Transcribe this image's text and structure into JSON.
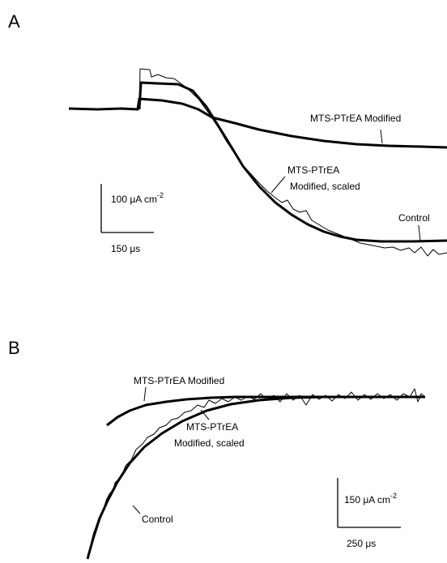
{
  "panels": [
    {
      "label": "A",
      "traces": {
        "modified": "MTS-PTrEA Modified",
        "scaled": [
          "MTS-PTrEA",
          "Modified, scaled"
        ],
        "control": "Control"
      },
      "scale_bar": {
        "current": "100 μA cm",
        "current_exponent": "-2",
        "time": "150 μs"
      }
    },
    {
      "label": "B",
      "traces": {
        "modified": "MTS-PTrEA Modified",
        "scaled": [
          "MTS-PTrEA",
          "Modified, scaled"
        ],
        "control": "Control"
      },
      "scale_bar": {
        "current": "150 μA cm",
        "current_exponent": "-2",
        "time": "250 μs"
      }
    }
  ]
}
